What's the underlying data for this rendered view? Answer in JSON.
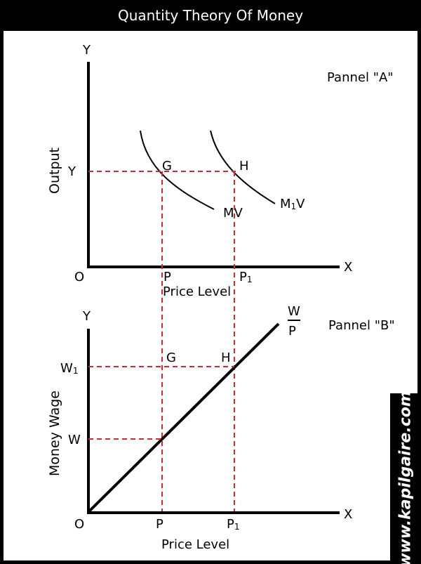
{
  "title": "Quantity Theory Of Money",
  "panel_a": {
    "heading": "Pannel \"A\"",
    "y_axis_letter": "Y",
    "x_axis_letter": "X",
    "origin": "O",
    "y_label": "Output",
    "y_tick": "Y",
    "x_label": "Price Level",
    "tick_p": "P",
    "tick_p1_main": "P",
    "tick_p1_sub": "1",
    "point_g": "G",
    "point_h": "H",
    "curve_mv": "MV",
    "curve_m1v_main": "M",
    "curve_m1v_sub": "1",
    "curve_m1v_end": "V"
  },
  "panel_b": {
    "heading": "Pannel \"B\"",
    "y_axis_letter": "Y",
    "x_axis_letter": "X",
    "origin": "O",
    "y_label": "Money Wage",
    "x_label": "Price Level",
    "tick_w": "W",
    "tick_w1_main": "W",
    "tick_w1_sub": "1",
    "tick_p": "P",
    "tick_p1_main": "P",
    "tick_p1_sub": "1",
    "point_g": "G",
    "point_h": "H",
    "line_label_num": "W",
    "line_label_den": "P"
  },
  "watermark": "www.kapilgaire.com",
  "colors": {
    "background": "#000000",
    "panel": "#ffffff",
    "axes": "#000000",
    "guide_lines": "#d9262c"
  }
}
